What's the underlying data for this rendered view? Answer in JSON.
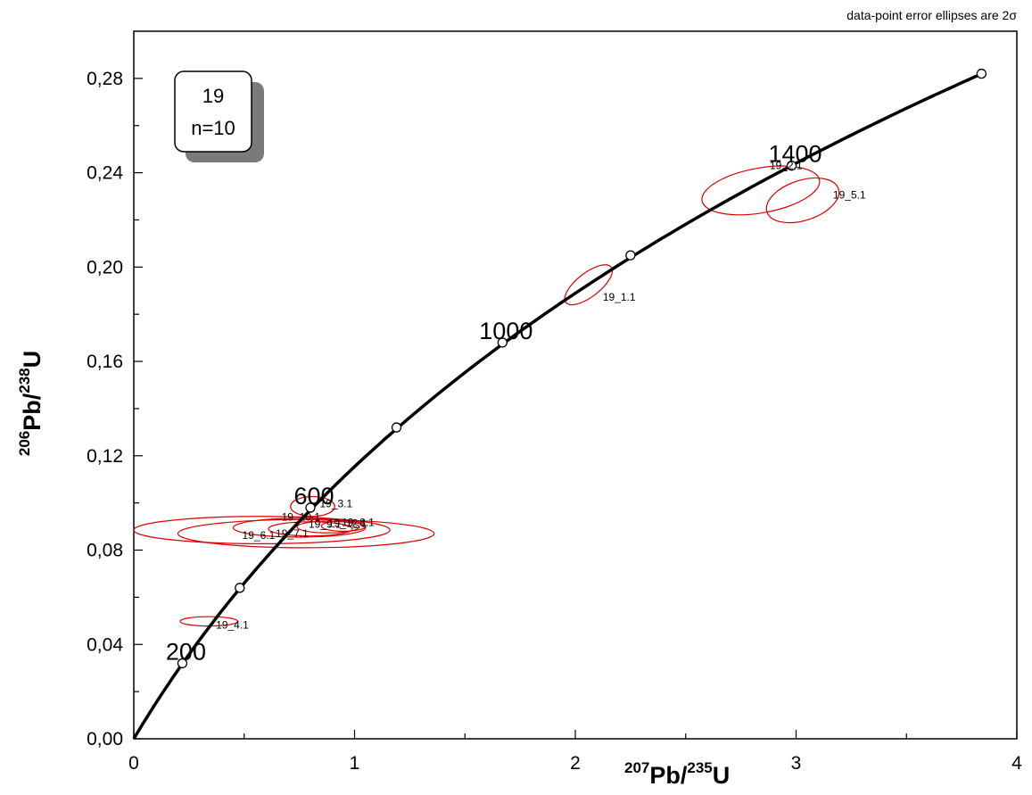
{
  "chart_data": {
    "type": "scatter",
    "note": "data-point error ellipses are 2σ",
    "xlabel": {
      "iso": "207",
      "base": "Pb/",
      "iso2": "235",
      "el": "U"
    },
    "ylabel": {
      "iso": "206",
      "base": "Pb/",
      "iso2": "238",
      "el": "U"
    },
    "xlim": [
      0,
      4
    ],
    "ylim": [
      0,
      0.3
    ],
    "x_ticks": [
      "0",
      "1",
      "2",
      "3",
      "4"
    ],
    "y_ticks": [
      "0,00",
      "0,04",
      "0,08",
      "0,12",
      "0,16",
      "0,20",
      "0,24",
      "0,28"
    ],
    "legend_box": {
      "line1": "19",
      "line2": "n=10"
    },
    "concordia": {
      "markers": [
        {
          "x": 0.22,
          "y": 0.032,
          "label": "200"
        },
        {
          "x": 0.48,
          "y": 0.064,
          "label": ""
        },
        {
          "x": 0.8,
          "y": 0.098,
          "label": "600"
        },
        {
          "x": 1.19,
          "y": 0.132,
          "label": ""
        },
        {
          "x": 1.67,
          "y": 0.168,
          "label": "1000"
        },
        {
          "x": 2.25,
          "y": 0.205,
          "label": ""
        },
        {
          "x": 2.98,
          "y": 0.243,
          "label": "1400"
        },
        {
          "x": 3.84,
          "y": 0.282,
          "label": ""
        }
      ]
    },
    "ellipses": [
      {
        "label": "19_2.1",
        "x": 2.84,
        "y": 0.2325,
        "rx": 0.27,
        "ry": 0.0095,
        "angle": -10
      },
      {
        "label": "19_5.1",
        "x": 3.03,
        "y": 0.2283,
        "rx": 0.17,
        "ry": 0.0085,
        "angle": -18
      },
      {
        "label": "19_1.1",
        "x": 2.06,
        "y": 0.1925,
        "rx": 0.13,
        "ry": 0.005,
        "angle": -38
      },
      {
        "label": "19_3.1",
        "x": 0.81,
        "y": 0.0985,
        "rx": 0.1,
        "ry": 0.0042,
        "angle": 0
      },
      {
        "label": "19_6.1",
        "x": 0.58,
        "y": 0.0885,
        "rx": 0.58,
        "ry": 0.0058,
        "angle": 0
      },
      {
        "label": "19_7.1",
        "x": 0.78,
        "y": 0.087,
        "rx": 0.58,
        "ry": 0.006,
        "angle": 0
      },
      {
        "label": "19_10.1",
        "x": 0.75,
        "y": 0.0895,
        "rx": 0.3,
        "ry": 0.004,
        "angle": 0
      },
      {
        "label": "19_9.1",
        "x": 0.8,
        "y": 0.089,
        "rx": 0.19,
        "ry": 0.003,
        "angle": 0
      },
      {
        "label": "19_12.1",
        "x": 0.88,
        "y": 0.0898,
        "rx": 0.14,
        "ry": 0.0025,
        "angle": 0
      },
      {
        "label": "19_8.1",
        "x": 0.95,
        "y": 0.0902,
        "rx": 0.1,
        "ry": 0.0022,
        "angle": 0
      },
      {
        "label": "19_4.1",
        "x": 0.34,
        "y": 0.0498,
        "rx": 0.13,
        "ry": 0.002,
        "angle": 0
      }
    ],
    "grid": false,
    "colors": {
      "curve": "#000000",
      "ellipse": "#dd0000",
      "shadow": "#7a7a7a"
    }
  }
}
